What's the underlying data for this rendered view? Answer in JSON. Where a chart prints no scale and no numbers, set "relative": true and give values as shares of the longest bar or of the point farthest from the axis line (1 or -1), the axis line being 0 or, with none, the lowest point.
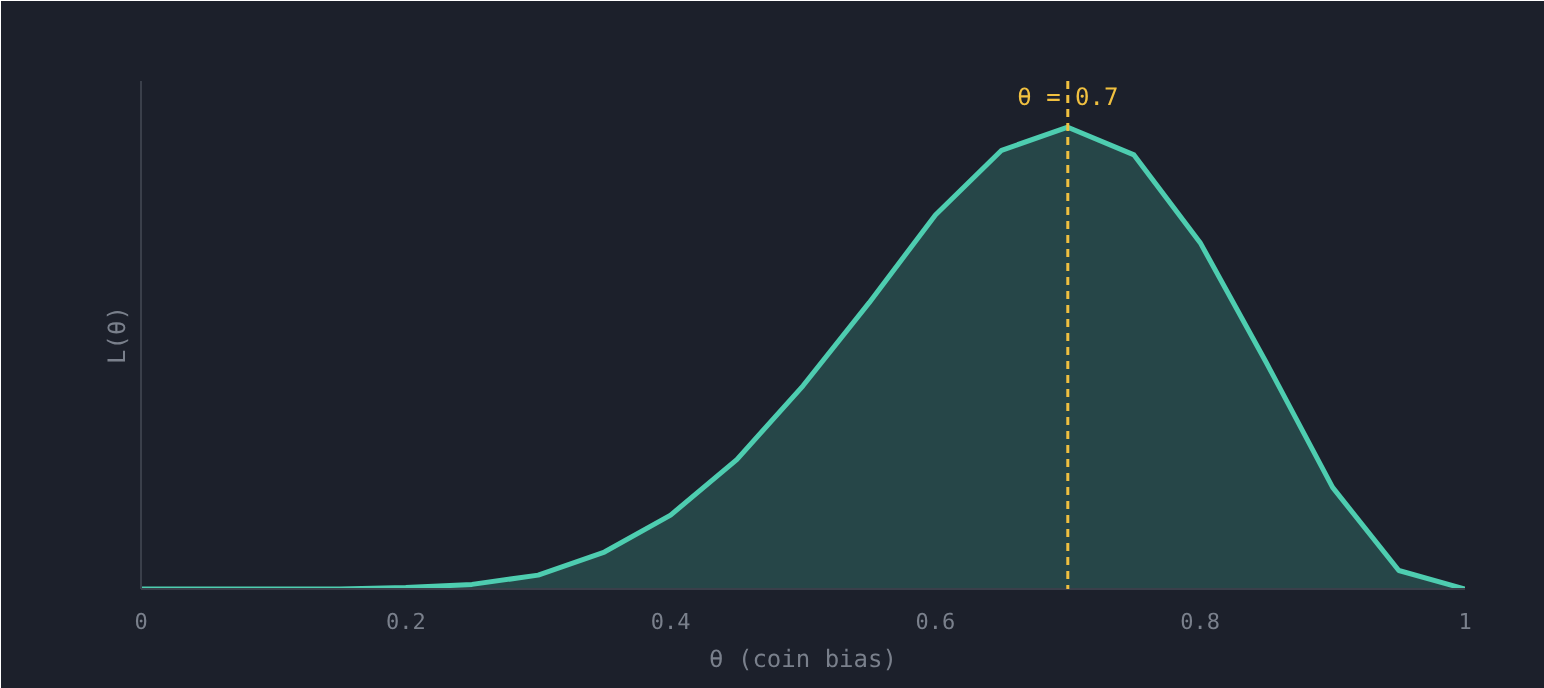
{
  "chart_data": {
    "type": "area",
    "xlabel": "θ (coin bias)",
    "ylabel": "L(θ)",
    "relative": true,
    "x": [
      0,
      0.05,
      0.1,
      0.15,
      0.2,
      0.25,
      0.3,
      0.35,
      0.4,
      0.45,
      0.5,
      0.55,
      0.6,
      0.65,
      0.7,
      0.75,
      0.8,
      0.85,
      0.9,
      0.95,
      1
    ],
    "series": [
      {
        "color": "#4ecdb0",
        "values": [
          0,
          0,
          0,
          0,
          0.003,
          0.01,
          0.03,
          0.08,
          0.16,
          0.28,
          0.44,
          0.62,
          0.81,
          0.95,
          1,
          0.94,
          0.75,
          0.49,
          0.22,
          0.04,
          0
        ]
      }
    ],
    "xlim": [
      0,
      1
    ],
    "xticks": [
      0,
      0.2,
      0.4,
      0.6,
      0.8,
      1
    ],
    "tick_labels": "x",
    "grid": false,
    "ref_lines": [
      {
        "axis": "x",
        "value": 0.7,
        "label": "θ = 0.7",
        "color": "#f0c040",
        "line_style": "dashed"
      }
    ]
  }
}
